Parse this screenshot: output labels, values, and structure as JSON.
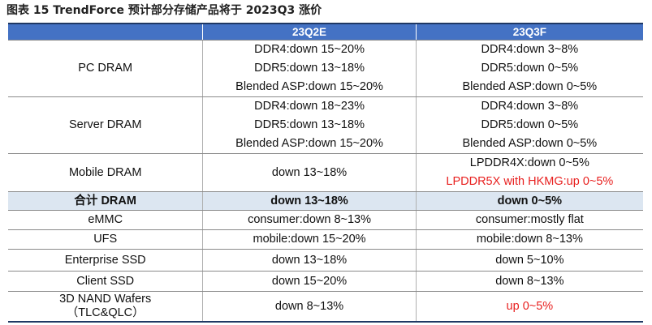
{
  "caption": "图表 15 TrendForce 预计部分存储产品将于 2023Q3 涨价",
  "header": {
    "col1": "",
    "col2": "23Q2E",
    "col3": "23Q3F"
  },
  "rows": [
    {
      "label": "PC DRAM",
      "q2": [
        "DDR4:down 15~20%",
        "DDR5:down 13~18%",
        "Blended ASP:down 15~20%"
      ],
      "q3": [
        "DDR4:down 3~8%",
        "DDR5:down 0~5%",
        "Blended ASP:down 0~5%"
      ]
    },
    {
      "label": "Server DRAM",
      "q2": [
        "DDR4:down 18~23%",
        "DDR5:down 13~18%",
        "Blended ASP:down 15~20%"
      ],
      "q3": [
        "DDR4:down 3~8%",
        "DDR5:down 0~5%",
        "Blended ASP:down 0~5%"
      ]
    },
    {
      "label": "Mobile DRAM",
      "q2": [
        "down 13~18%"
      ],
      "q3": [
        "LPDDR4X:down 0~5%",
        "LPDDR5X with HKMG:up 0~5%"
      ]
    },
    {
      "label": "合计 DRAM",
      "q2": [
        "down 13~18%"
      ],
      "q3": [
        "down 0~5%"
      ]
    },
    {
      "label": "eMMC",
      "q2": [
        "consumer:down 8~13%"
      ],
      "q3": [
        "consumer:mostly flat"
      ]
    },
    {
      "label": "UFS",
      "q2": [
        "mobile:down 15~20%"
      ],
      "q3": [
        "mobile:down 8~13%"
      ]
    },
    {
      "label": "Enterprise SSD",
      "q2": [
        "down 13~18%"
      ],
      "q3": [
        "down 5~10%"
      ]
    },
    {
      "label": "Client SSD",
      "q2": [
        "down 15~20%"
      ],
      "q3": [
        "down 8~13%"
      ]
    },
    {
      "label": "3D NAND Wafers",
      "label2": "（TLC&QLC）",
      "q2": [
        "down 8~13%"
      ],
      "q3": [
        "up 0~5%"
      ]
    }
  ],
  "colors": {
    "header_bg": "#4472c4",
    "total_bg": "#dce6f1",
    "highlight": "#e8201f"
  }
}
